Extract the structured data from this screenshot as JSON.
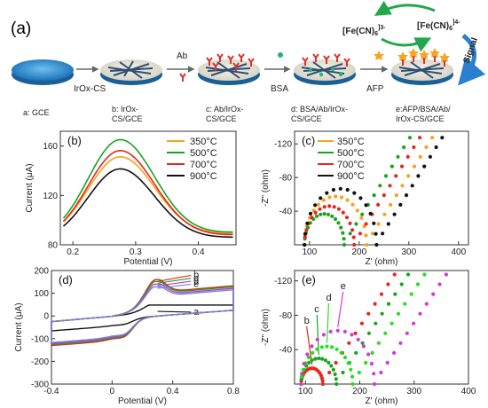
{
  "scheme": {
    "panel_label": "(a)",
    "redox_ox": "[Fe(CN)",
    "redox_ox_sub": "6",
    "redox_ox_sup": "]3-",
    "redox_red": "[Fe(CN)",
    "redox_red_sub": "6",
    "redox_red_sup": "]4-",
    "signal": "Signal",
    "arrow_labels": [
      "IrOx-CS",
      "Ab",
      "BSA",
      "AFP"
    ],
    "captions": [
      [
        "a: GCE"
      ],
      [
        "b: IrOx-",
        "CS/GCE"
      ],
      [
        "c: Ab/IrOx-",
        "CS/GCE"
      ],
      [
        "d: BSA/Ab/IrOx-",
        "CS/GCE"
      ],
      [
        "e:AFP/BSA/Ab/",
        "IrOx-CS/GCE"
      ]
    ],
    "colors": {
      "electrode": "#3a9ad9",
      "mesh": "#2f4f6f",
      "antibody": "#d9342b",
      "afp": "#f5a623",
      "bsa": "#22b573",
      "cycle": "#20a84a",
      "signal_arrow": "#2a7fd0"
    }
  },
  "chart_data": [
    {
      "panel": "(b)",
      "type": "line",
      "xlabel": "Potential (V)",
      "ylabel": "Current (μA)",
      "xlim": [
        0.18,
        0.46
      ],
      "ylim": [
        80,
        172
      ],
      "xticks": [
        0.2,
        0.3,
        0.4
      ],
      "yticks": [
        80,
        120,
        160
      ],
      "legend_position": "top-right",
      "series": [
        {
          "name": "350°C",
          "color": "#f7a21b",
          "peak": 152,
          "base_left": 85,
          "base_right": 89
        },
        {
          "name": "500°C",
          "color": "#1aa320",
          "peak": 166,
          "base_left": 85,
          "base_right": 90
        },
        {
          "name": "700°C",
          "color": "#e8251f",
          "peak": 157,
          "base_left": 84,
          "base_right": 88
        },
        {
          "name": "900°C",
          "color": "#111111",
          "peak": 142,
          "base_left": 83,
          "base_right": 86
        }
      ],
      "peak_potential": 0.275
    },
    {
      "panel": "(c)",
      "type": "scatter",
      "xlabel": "Z' (ohm)",
      "ylabel": "-Z\" (ohm)",
      "xlim": [
        70,
        420
      ],
      "ylim": [
        0,
        -135
      ],
      "xticks": [
        100,
        200,
        300,
        400
      ],
      "yticks": [
        -40,
        -80,
        -120
      ],
      "legend_position": "top-left",
      "series": [
        {
          "name": "350°C",
          "color": "#f7a21b",
          "rs": 90,
          "rct": 125
        },
        {
          "name": "500°C",
          "color": "#1aa320",
          "rs": 90,
          "rct": 80
        },
        {
          "name": "700°C",
          "color": "#e8251f",
          "rs": 90,
          "rct": 100
        },
        {
          "name": "900°C",
          "color": "#111111",
          "rs": 90,
          "rct": 145
        }
      ]
    },
    {
      "panel": "(d)",
      "type": "line",
      "xlabel": "Potential (V)",
      "ylabel": "Current (μA)",
      "xlim": [
        -0.4,
        0.8
      ],
      "ylim": [
        -300,
        200
      ],
      "xticks": [
        -0.4,
        0.0,
        0.4,
        0.8
      ],
      "yticks": [
        -300,
        -200,
        -100,
        0,
        100,
        200
      ],
      "series": [
        {
          "name": "a",
          "color": "#111111",
          "ipa": 48,
          "ipc": -68
        },
        {
          "name": "b",
          "color": "#e8251f",
          "ipa": 160,
          "ipc": -212
        },
        {
          "name": "c",
          "color": "#1aa320",
          "ipa": 152,
          "ipc": -202
        },
        {
          "name": "d",
          "color": "#b03fd8",
          "ipa": 140,
          "ipc": -192
        },
        {
          "name": "e",
          "color": "#7a84c8",
          "ipa": 128,
          "ipc": -182
        }
      ]
    },
    {
      "panel": "(e)",
      "type": "scatter",
      "xlabel": "Z' (ohm)",
      "ylabel": "-Z\" (ohm)",
      "xlim": [
        80,
        400
      ],
      "ylim": [
        0,
        -132
      ],
      "xticks": [
        100,
        200,
        300,
        400
      ],
      "yticks": [
        -40,
        -80,
        -120
      ],
      "series": [
        {
          "name": "b",
          "color": "#e8251f",
          "rs": 92,
          "rct": 40
        },
        {
          "name": "c",
          "color": "#1aa320",
          "rs": 92,
          "rct": 65
        },
        {
          "name": "d",
          "color": "#22e020",
          "rs": 92,
          "rct": 95
        },
        {
          "name": "e",
          "color": "#d23ad8",
          "rs": 92,
          "rct": 135
        }
      ]
    }
  ]
}
